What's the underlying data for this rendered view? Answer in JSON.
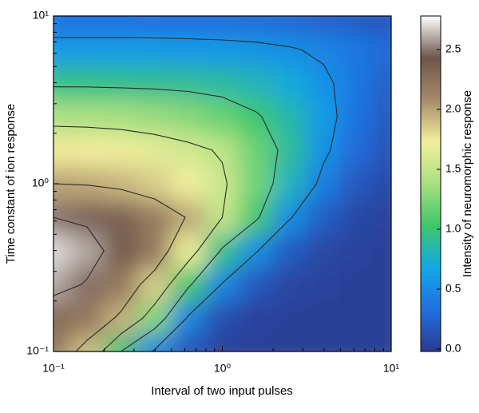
{
  "chart_data": {
    "type": "heatmap",
    "xlabel": "Interval of two input pulses",
    "ylabel": "Time constant of ion response",
    "colorbar_label": "Intensity of neuromorphic response",
    "xscale": "log",
    "yscale": "log",
    "xlim": [
      0.1,
      10
    ],
    "ylim": [
      0.1,
      10
    ],
    "xticks": [
      {
        "value": 0.1,
        "label": "10⁻¹"
      },
      {
        "value": 1,
        "label": "10⁰"
      },
      {
        "value": 10,
        "label": "10¹"
      }
    ],
    "yticks": [
      {
        "value": 0.1,
        "label": "10⁻¹"
      },
      {
        "value": 1,
        "label": "10⁰"
      },
      {
        "value": 10,
        "label": "10¹"
      }
    ],
    "xminorticks": [
      0.2,
      0.3,
      0.4,
      0.5,
      0.6,
      0.7,
      0.8,
      0.9,
      2,
      3,
      4,
      5,
      6,
      7,
      8,
      9
    ],
    "yminorticks": [
      0.2,
      0.3,
      0.4,
      0.5,
      0.6,
      0.7,
      0.8,
      0.9,
      2,
      3,
      4,
      5,
      6,
      7,
      8,
      9
    ],
    "x": [
      0.1,
      0.158,
      0.251,
      0.398,
      0.631,
      1,
      1.585,
      2.512,
      3.981,
      6.31,
      10
    ],
    "y": [
      0.1,
      0.158,
      0.251,
      0.398,
      0.631,
      1,
      1.585,
      2.512,
      3.981,
      6.31,
      10
    ],
    "z": [
      [
        2.2,
        1.9,
        1.0,
        0.45,
        0.15,
        0.04,
        0.02,
        0.01,
        0.01,
        0.01,
        0.01
      ],
      [
        2.3,
        2.2,
        1.95,
        1.25,
        0.45,
        0.12,
        0.04,
        0.02,
        0.01,
        0.01,
        0.01
      ],
      [
        2.6,
        2.48,
        2.2,
        1.85,
        1.05,
        0.48,
        0.18,
        0.06,
        0.03,
        0.02,
        0.01
      ],
      [
        2.7,
        2.6,
        2.4,
        2.2,
        1.7,
        0.95,
        0.52,
        0.2,
        0.07,
        0.03,
        0.02
      ],
      [
        2.5,
        2.46,
        2.35,
        2.18,
        1.98,
        1.5,
        1.05,
        0.52,
        0.22,
        0.08,
        0.04
      ],
      [
        2.0,
        1.98,
        1.93,
        1.85,
        1.72,
        1.55,
        1.2,
        0.8,
        0.42,
        0.18,
        0.08
      ],
      [
        1.75,
        1.74,
        1.71,
        1.65,
        1.57,
        1.47,
        1.18,
        0.9,
        0.55,
        0.3,
        0.14
      ],
      [
        1.4,
        1.39,
        1.37,
        1.33,
        1.27,
        1.17,
        1.03,
        0.85,
        0.6,
        0.35,
        0.18
      ],
      [
        0.95,
        0.95,
        0.94,
        0.93,
        0.91,
        0.88,
        0.82,
        0.72,
        0.55,
        0.38,
        0.22
      ],
      [
        0.6,
        0.6,
        0.6,
        0.6,
        0.59,
        0.58,
        0.56,
        0.52,
        0.46,
        0.38,
        0.28
      ],
      [
        0.32,
        0.32,
        0.32,
        0.31,
        0.31,
        0.3,
        0.29,
        0.27,
        0.24,
        0.2,
        0.15
      ]
    ],
    "contour_levels": [
      0.5,
      1,
      1.5,
      2,
      2.5
    ],
    "contour_color": "#2a2a2a",
    "clim": [
      -0.02,
      2.78
    ],
    "cticks": [
      {
        "value": 0,
        "label": "0.0"
      },
      {
        "value": 0.5,
        "label": "0.5"
      },
      {
        "value": 1,
        "label": "1.0"
      },
      {
        "value": 1.5,
        "label": "1.5"
      },
      {
        "value": 2,
        "label": "2.0"
      },
      {
        "value": 2.5,
        "label": "2.5"
      }
    ],
    "colormap": [
      "#2c3a8e",
      "#1f6fe0",
      "#14a8e8",
      "#3ec76a",
      "#a8e080",
      "#f3ef9c",
      "#a88a6a",
      "#6e554a",
      "#ffffff"
    ]
  }
}
